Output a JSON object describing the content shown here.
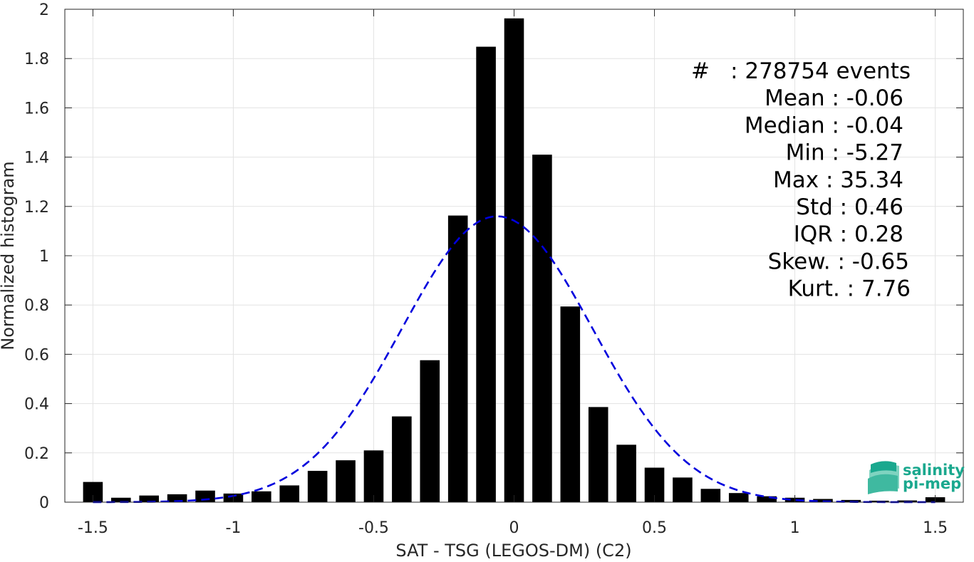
{
  "chart_data": {
    "type": "bar",
    "xlabel": "SAT - TSG (LEGOS-DM) (C2)",
    "ylabel": "Normalized histogram",
    "xlim": [
      -1.6,
      1.6
    ],
    "ylim": [
      0,
      2
    ],
    "xticks": [
      -1.5,
      -1,
      -0.5,
      0,
      0.5,
      1,
      1.5
    ],
    "xtick_labels": [
      "-1.5",
      "-1",
      "-0.5",
      "0",
      "0.5",
      "1",
      "1.5"
    ],
    "yticks": [
      0,
      0.2,
      0.4,
      0.6,
      0.8,
      1,
      1.2,
      1.4,
      1.6,
      1.8,
      2
    ],
    "ytick_labels": [
      "0",
      "0.2",
      "0.4",
      "0.6",
      "0.8",
      "1",
      "1.2",
      "1.4",
      "1.6",
      "1.8",
      "2"
    ],
    "grid": true,
    "bar_color": "#000000",
    "bar_width": 0.07,
    "bins": [
      {
        "x": -1.5,
        "y": 0.082
      },
      {
        "x": -1.4,
        "y": 0.018
      },
      {
        "x": -1.3,
        "y": 0.027
      },
      {
        "x": -1.2,
        "y": 0.032
      },
      {
        "x": -1.1,
        "y": 0.047
      },
      {
        "x": -1.0,
        "y": 0.035
      },
      {
        "x": -0.9,
        "y": 0.044
      },
      {
        "x": -0.8,
        "y": 0.068
      },
      {
        "x": -0.7,
        "y": 0.127
      },
      {
        "x": -0.6,
        "y": 0.17
      },
      {
        "x": -0.5,
        "y": 0.21
      },
      {
        "x": -0.4,
        "y": 0.348
      },
      {
        "x": -0.3,
        "y": 0.576
      },
      {
        "x": -0.2,
        "y": 1.163
      },
      {
        "x": -0.1,
        "y": 1.848
      },
      {
        "x": 0.0,
        "y": 1.963
      },
      {
        "x": 0.1,
        "y": 1.41
      },
      {
        "x": 0.2,
        "y": 0.794
      },
      {
        "x": 0.3,
        "y": 0.386
      },
      {
        "x": 0.4,
        "y": 0.233
      },
      {
        "x": 0.5,
        "y": 0.14
      },
      {
        "x": 0.6,
        "y": 0.1
      },
      {
        "x": 0.7,
        "y": 0.054
      },
      {
        "x": 0.8,
        "y": 0.037
      },
      {
        "x": 0.9,
        "y": 0.024
      },
      {
        "x": 1.0,
        "y": 0.018
      },
      {
        "x": 1.1,
        "y": 0.013
      },
      {
        "x": 1.2,
        "y": 0.009
      },
      {
        "x": 1.3,
        "y": 0.006
      },
      {
        "x": 1.4,
        "y": 0.007
      },
      {
        "x": 1.5,
        "y": 0.02
      }
    ],
    "fit_curve": {
      "type": "gaussian",
      "mean": -0.06,
      "std": 0.34,
      "amplitude": 1.16,
      "x_range": [
        -1.5,
        1.5
      ],
      "color": "#0000dd",
      "style": "dashed"
    },
    "stats": [
      {
        "label": "#",
        "value": ": 278754 events"
      },
      {
        "label": "Mean",
        "value": ": -0.06"
      },
      {
        "label": "Median",
        "value": ": -0.04"
      },
      {
        "label": "Min",
        "value": ": -5.27"
      },
      {
        "label": "Max",
        "value": ": 35.34"
      },
      {
        "label": "Std",
        "value": ": 0.46"
      },
      {
        "label": "IQR",
        "value": ": 0.28"
      },
      {
        "label": "Skew.",
        "value": ": -0.65"
      },
      {
        "label": "Kurt.",
        "value": ": 7.76"
      }
    ]
  },
  "logo": {
    "line1": "salinity",
    "line2": "pi-mep",
    "color": "#1aa88e"
  }
}
